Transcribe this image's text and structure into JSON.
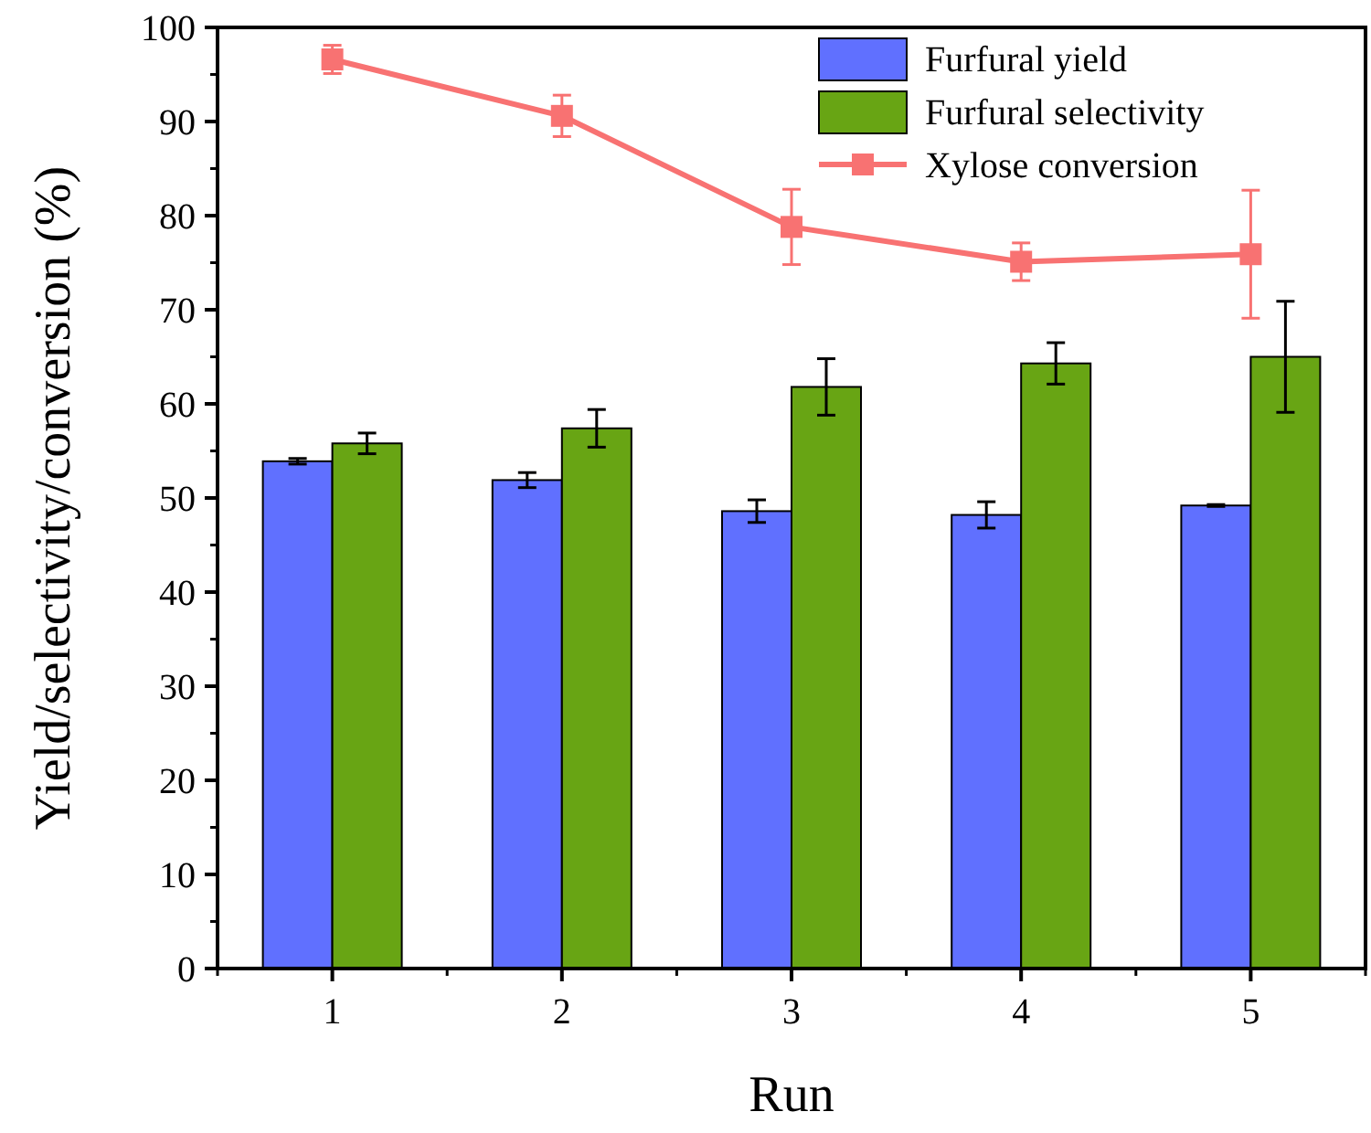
{
  "chart_data": {
    "type": "bar",
    "xlabel": "Run",
    "ylabel": "Yield/selectivity/conversion (%)",
    "categories": [
      "1",
      "2",
      "3",
      "4",
      "5"
    ],
    "ylim": [
      0,
      100
    ],
    "yticks": [
      0,
      10,
      20,
      30,
      40,
      50,
      60,
      70,
      80,
      90,
      100
    ],
    "grid": false,
    "legend": "top right",
    "marker": "square",
    "line_style": "solid",
    "series": [
      {
        "name": "Furfural yield",
        "color": "#6070ff",
        "values": [
          53.9,
          51.9,
          48.6,
          48.2,
          49.2
        ],
        "errors": [
          0.3,
          0.8,
          1.2,
          1.4,
          0.1
        ]
      },
      {
        "name": "Furfural selectivity",
        "color": "#68a514",
        "values": [
          55.8,
          57.4,
          61.8,
          64.3,
          65.0
        ],
        "errors": [
          1.1,
          2.0,
          3.0,
          2.2,
          5.9
        ]
      },
      {
        "name": "Xylose conversion",
        "type": "line",
        "color": "#f87272",
        "values": [
          96.6,
          90.6,
          78.8,
          75.1,
          75.9
        ],
        "errors": [
          1.5,
          2.2,
          4.0,
          2.0,
          6.8
        ]
      }
    ]
  }
}
